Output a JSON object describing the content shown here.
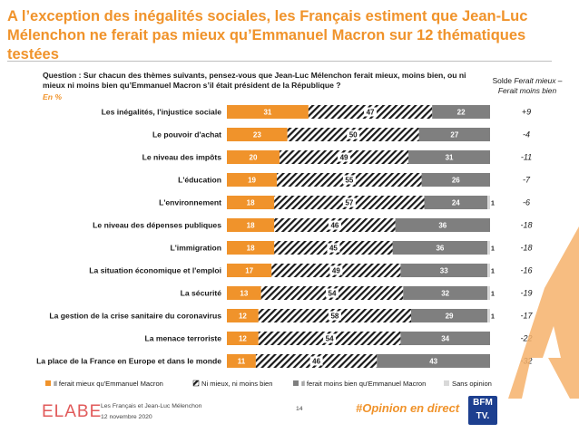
{
  "title": "A l’exception des inégalités sociales, les Français estiment que Jean-Luc Mélenchon ne ferait pas mieux qu’Emmanuel Macron sur 12 thématiques testées",
  "question": "Question : Sur chacun des thèmes suivants, pensez-vous que Jean-Luc Mélenchon ferait mieux, moins bien, ou ni mieux ni moins bien qu’Emmanuel Macron s’il était président de la République ?",
  "unit_label": "En %",
  "solde_header": {
    "line1_normal": "Solde ",
    "line1_italic": "Ferait mieux –",
    "line2_italic": "Ferait moins bien"
  },
  "footer": {
    "logo": "ELABE",
    "note_line1": "Les Français et Jean-Luc Mélenchon",
    "note_line2": "12 novembre 2020",
    "page_number": "14",
    "hashtag": "#Opinion en direct",
    "broadcaster_line1": "BFM",
    "broadcaster_line2": "TV."
  },
  "chart_data": {
    "type": "bar",
    "orientation": "horizontal",
    "stacked": true,
    "categories": [
      "Les inégalités, l'injustice sociale",
      "Le pouvoir d'achat",
      "Le niveau des impôts",
      "L'éducation",
      "L'environnement",
      "Le niveau des dépenses publiques",
      "L'immigration",
      "La situation économique et l'emploi",
      "La sécurité",
      "La gestion de la crise sanitaire du coronavirus",
      "La menace terroriste",
      "La place de la France en Europe et dans le monde"
    ],
    "series": [
      {
        "name": "Il ferait mieux qu'Emmanuel Macron",
        "color": "#f0932b",
        "pattern": "solid",
        "values": [
          31,
          23,
          20,
          19,
          18,
          18,
          18,
          17,
          13,
          12,
          12,
          11
        ]
      },
      {
        "name": "Ni mieux, ni moins bien",
        "color": "#1a1a1a",
        "pattern": "hatched",
        "values": [
          47,
          50,
          49,
          55,
          57,
          46,
          45,
          49,
          54,
          58,
          54,
          46
        ]
      },
      {
        "name": "Il ferait moins bien qu'Emmanuel Macron",
        "color": "#7f7f7f",
        "pattern": "solid",
        "values": [
          22,
          27,
          31,
          26,
          24,
          36,
          36,
          33,
          32,
          29,
          34,
          43
        ]
      },
      {
        "name": "Sans opinion",
        "color": "#d9d9d9",
        "pattern": "solid",
        "values": [
          null,
          null,
          null,
          null,
          1,
          null,
          1,
          1,
          1,
          1,
          null,
          null
        ]
      }
    ],
    "solde": [
      "+9",
      "-4",
      "-11",
      "-7",
      "-6",
      "-18",
      "-18",
      "-16",
      "-19",
      "-17",
      "-22",
      "-32"
    ],
    "xlim": [
      0,
      100
    ],
    "legend_position": "bottom",
    "grid": false
  }
}
